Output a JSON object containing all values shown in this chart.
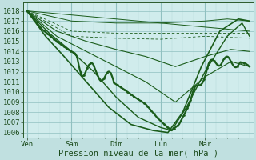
{
  "background_color": "#c0e0e0",
  "plot_bg_color": "#d0ecec",
  "grid_color_minor": "#b0d4d4",
  "grid_color_major": "#90c0c0",
  "line_color": "#1a5c1a",
  "xlabel": "Pression niveau de la mer( hPa )",
  "ylim": [
    1005.5,
    1018.8
  ],
  "yticks": [
    1006,
    1007,
    1008,
    1009,
    1010,
    1011,
    1012,
    1013,
    1014,
    1015,
    1016,
    1017,
    1018
  ],
  "xtick_labels": [
    "Ven",
    "Sam",
    "Dim",
    "Lun",
    "Mar"
  ],
  "xtick_positions": [
    0,
    24,
    48,
    72,
    96
  ],
  "xlim": [
    -2,
    122
  ],
  "axis_fontsize": 6.5,
  "label_fontsize": 7.5
}
